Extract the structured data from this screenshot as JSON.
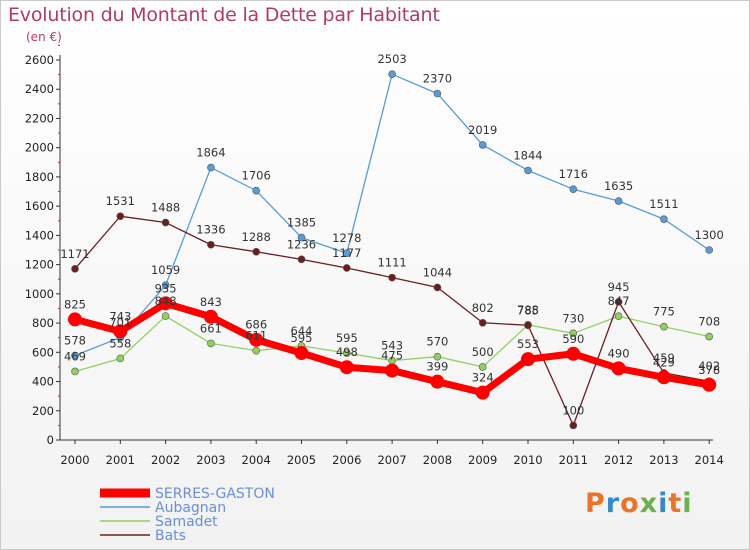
{
  "header": {
    "title": "Evolution du Montant de la Dette par Habitant",
    "subtitle": "(en €)"
  },
  "logo": {
    "text": "Proxiti",
    "letters": [
      {
        "char": "P",
        "color": "#e8742c"
      },
      {
        "char": "r",
        "color": "#3b87c8"
      },
      {
        "char": "o",
        "color": "#e8742c"
      },
      {
        "char": "x",
        "color": "#6ab04c"
      },
      {
        "char": "i",
        "color": "#3b87c8"
      },
      {
        "char": "t",
        "color": "#e8742c"
      },
      {
        "char": "i",
        "color": "#6ab04c"
      }
    ]
  },
  "chart_data": {
    "type": "line",
    "title": "Evolution du Montant de la Dette par Habitant",
    "subtitle": "(en €)",
    "xlabel": "",
    "ylabel": "",
    "x": [
      "2000",
      "2001",
      "2002",
      "2003",
      "2004",
      "2005",
      "2006",
      "2007",
      "2008",
      "2009",
      "2010",
      "2011",
      "2012",
      "2013",
      "2014"
    ],
    "ylim": [
      0,
      2600
    ],
    "yticks": [
      0,
      200,
      400,
      600,
      800,
      1000,
      1200,
      1400,
      1600,
      1800,
      2000,
      2200,
      2400,
      2600
    ],
    "grid": false,
    "legend_position": "bottom-left",
    "series": [
      {
        "name": "SERRES-GASTON",
        "color": "#ff0000",
        "values": [
          825,
          743,
          935,
          843,
          686,
          595,
          498,
          475,
          399,
          324,
          553,
          590,
          490,
          429,
          378
        ]
      },
      {
        "name": "Aubagnan",
        "color": "#5a9bd5",
        "values": [
          578,
          701,
          1059,
          1864,
          1706,
          1385,
          1278,
          2503,
          2370,
          2019,
          1844,
          1716,
          1635,
          1511,
          1300
        ]
      },
      {
        "name": "Samadet",
        "color": "#90d060",
        "values": [
          469,
          558,
          848,
          661,
          611,
          644,
          595,
          543,
          570,
          500,
          788,
          730,
          847,
          775,
          708
        ]
      },
      {
        "name": "Bats",
        "color": "#6b1e1e",
        "values": [
          1171,
          1531,
          1488,
          1336,
          1288,
          1236,
          1177,
          1111,
          1044,
          802,
          785,
          100,
          945,
          459,
          402
        ]
      }
    ]
  }
}
